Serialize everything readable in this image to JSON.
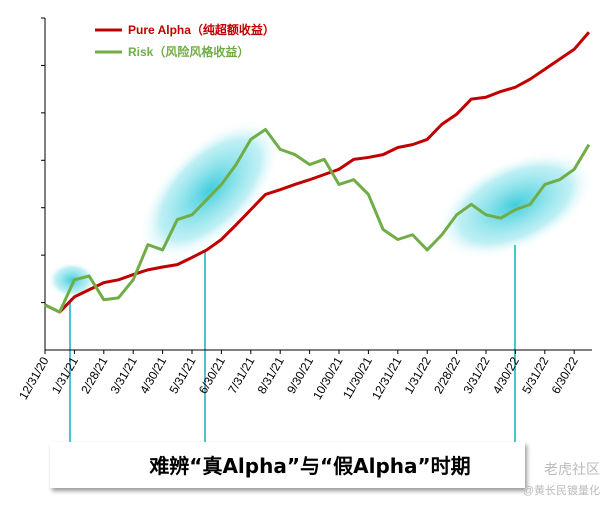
{
  "chart_data": {
    "type": "line",
    "categories": [
      "12/31/20",
      null,
      "1/31/21",
      null,
      "2/28/21",
      null,
      "3/31/21",
      null,
      "4/30/21",
      null,
      "5/31/21",
      null,
      "6/30/21",
      null,
      "7/31/21",
      null,
      "8/31/21",
      null,
      "9/30/21",
      null,
      "10/30/21",
      null,
      "11/30/21",
      null,
      "12/31/21",
      null,
      "1/31/22",
      null,
      "2/28/22",
      null,
      "3/31/22",
      null,
      "4/30/22",
      null,
      "5/31/22",
      null,
      "6/30/22",
      null
    ],
    "series": [
      {
        "name": "Pure Alpha（纯超额收益）",
        "color": "#c00000",
        "values": [
          0.95,
          0.8,
          1.12,
          1.27,
          1.42,
          1.48,
          1.59,
          1.69,
          1.75,
          1.8,
          1.95,
          2.11,
          2.33,
          2.64,
          2.96,
          3.28,
          3.38,
          3.49,
          3.59,
          3.7,
          3.81,
          4.02,
          4.06,
          4.12,
          4.27,
          4.33,
          4.44,
          4.76,
          4.97,
          5.29,
          5.33,
          5.45,
          5.54,
          5.71,
          5.92,
          6.13,
          6.34,
          6.7
        ]
      },
      {
        "name": "Risk（风险风格收益）",
        "color": "#70ad47",
        "values": [
          0.95,
          0.8,
          1.48,
          1.56,
          1.06,
          1.1,
          1.48,
          2.22,
          2.11,
          2.75,
          2.85,
          3.17,
          3.49,
          3.91,
          4.44,
          4.65,
          4.23,
          4.12,
          3.91,
          4.02,
          3.49,
          3.59,
          3.28,
          2.54,
          2.33,
          2.43,
          2.11,
          2.43,
          2.85,
          3.07,
          2.85,
          2.78,
          2.96,
          3.07,
          3.49,
          3.59,
          3.81,
          4.33
        ]
      }
    ],
    "ylim": [
      0,
      7
    ],
    "yticks": [
      1,
      2,
      3,
      4,
      5,
      6,
      7
    ],
    "caption": "难辨“真Alpha”与“假Alpha”时期",
    "watermark": [
      "老虎社区",
      "@黄长民镀量化"
    ]
  }
}
